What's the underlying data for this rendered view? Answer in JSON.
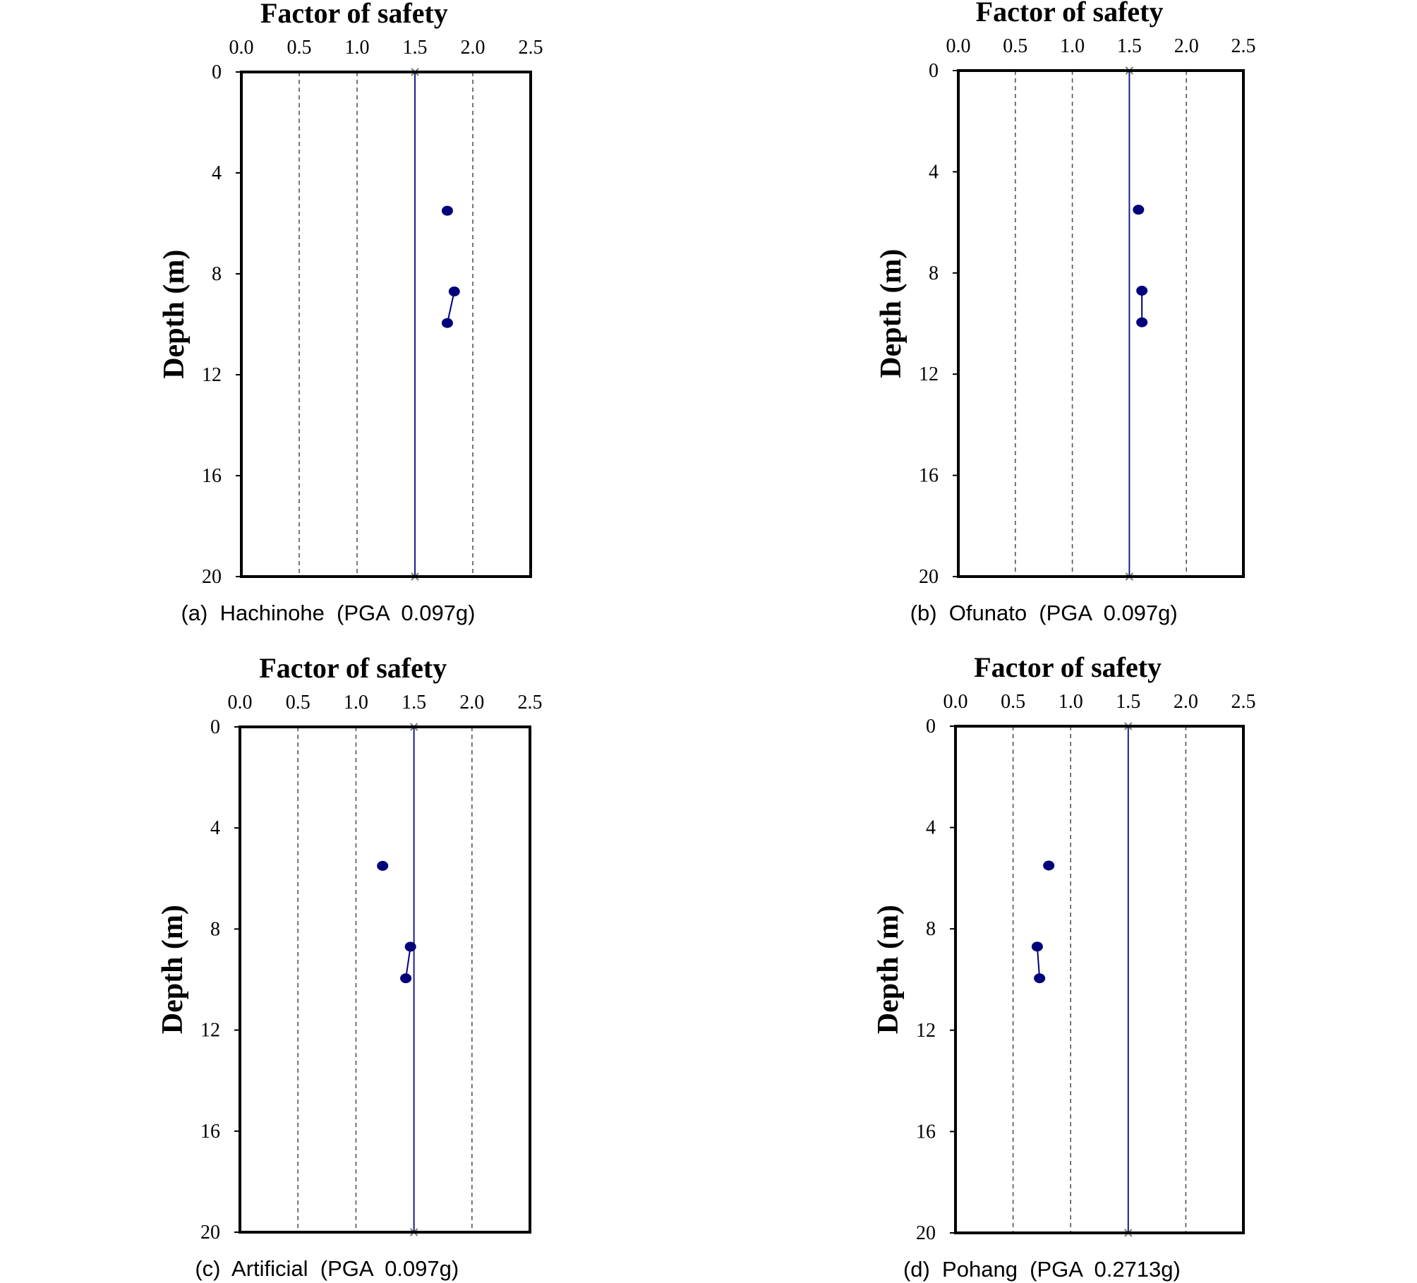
{
  "chart_data": [
    {
      "type": "scatter",
      "title": "Factor of safety",
      "ylabel": "Depth (m)",
      "caption": "(a)  Hachinohe  (PGA  0.097g)",
      "xlim": [
        0,
        2.5
      ],
      "ylim": [
        0,
        20
      ],
      "y_inverted": true,
      "x_axis_position": "top",
      "xticks": [
        "0.0",
        "0.5",
        "1.0",
        "1.5",
        "2.0",
        "2.5"
      ],
      "yticks": [
        "0",
        "4",
        "8",
        "12",
        "16",
        "20"
      ],
      "grid_x": [
        0.5,
        1.0,
        2.0
      ],
      "reference_line_x": 1.5,
      "points": [
        {
          "x": 1.78,
          "y": 5.5
        },
        {
          "x": 1.84,
          "y": 8.7
        },
        {
          "x": 1.78,
          "y": 9.95
        }
      ],
      "connected": [
        [
          1,
          2
        ]
      ]
    },
    {
      "type": "scatter",
      "title": "Factor of safety",
      "ylabel": "Depth (m)",
      "caption": "(b)  Ofunato  (PGA  0.097g)",
      "xlim": [
        0,
        2.5
      ],
      "ylim": [
        0,
        20
      ],
      "y_inverted": true,
      "x_axis_position": "top",
      "xticks": [
        "0.0",
        "0.5",
        "1.0",
        "1.5",
        "2.0",
        "2.5"
      ],
      "yticks": [
        "0",
        "4",
        "8",
        "12",
        "16",
        "20"
      ],
      "grid_x": [
        0.5,
        1.0,
        2.0
      ],
      "reference_line_x": 1.5,
      "points": [
        {
          "x": 1.58,
          "y": 5.5
        },
        {
          "x": 1.61,
          "y": 8.7
        },
        {
          "x": 1.61,
          "y": 9.95
        }
      ],
      "connected": [
        [
          1,
          2
        ]
      ]
    },
    {
      "type": "scatter",
      "title": "Factor of safety",
      "ylabel": "Depth (m)",
      "caption": "(c)  Artificial  (PGA  0.097g)",
      "xlim": [
        0,
        2.5
      ],
      "ylim": [
        0,
        20
      ],
      "y_inverted": true,
      "x_axis_position": "top",
      "xticks": [
        "0.0",
        "0.5",
        "1.0",
        "1.5",
        "2.0",
        "2.5"
      ],
      "yticks": [
        "0",
        "4",
        "8",
        "12",
        "16",
        "20"
      ],
      "grid_x": [
        0.5,
        1.0,
        2.0
      ],
      "reference_line_x": 1.5,
      "points": [
        {
          "x": 1.23,
          "y": 5.5
        },
        {
          "x": 1.47,
          "y": 8.7
        },
        {
          "x": 1.43,
          "y": 9.95
        }
      ],
      "connected": [
        [
          1,
          2
        ]
      ]
    },
    {
      "type": "scatter",
      "title": "Factor of safety",
      "ylabel": "Depth (m)",
      "caption": "(d)  Pohang  (PGA  0.2713g)",
      "xlim": [
        0,
        2.5
      ],
      "ylim": [
        0,
        20
      ],
      "y_inverted": true,
      "x_axis_position": "top",
      "xticks": [
        "0.0",
        "0.5",
        "1.0",
        "1.5",
        "2.0",
        "2.5"
      ],
      "yticks": [
        "0",
        "4",
        "8",
        "12",
        "16",
        "20"
      ],
      "grid_x": [
        0.5,
        1.0,
        2.0
      ],
      "reference_line_x": 1.5,
      "points": [
        {
          "x": 0.81,
          "y": 5.5
        },
        {
          "x": 0.71,
          "y": 8.7
        },
        {
          "x": 0.73,
          "y": 9.95
        }
      ],
      "connected": [
        [
          1,
          2
        ]
      ]
    }
  ],
  "colors": {
    "marker": "#00007a",
    "reference_line": "#1c1c8c",
    "frame": "#000000",
    "grid": "#555555"
  }
}
